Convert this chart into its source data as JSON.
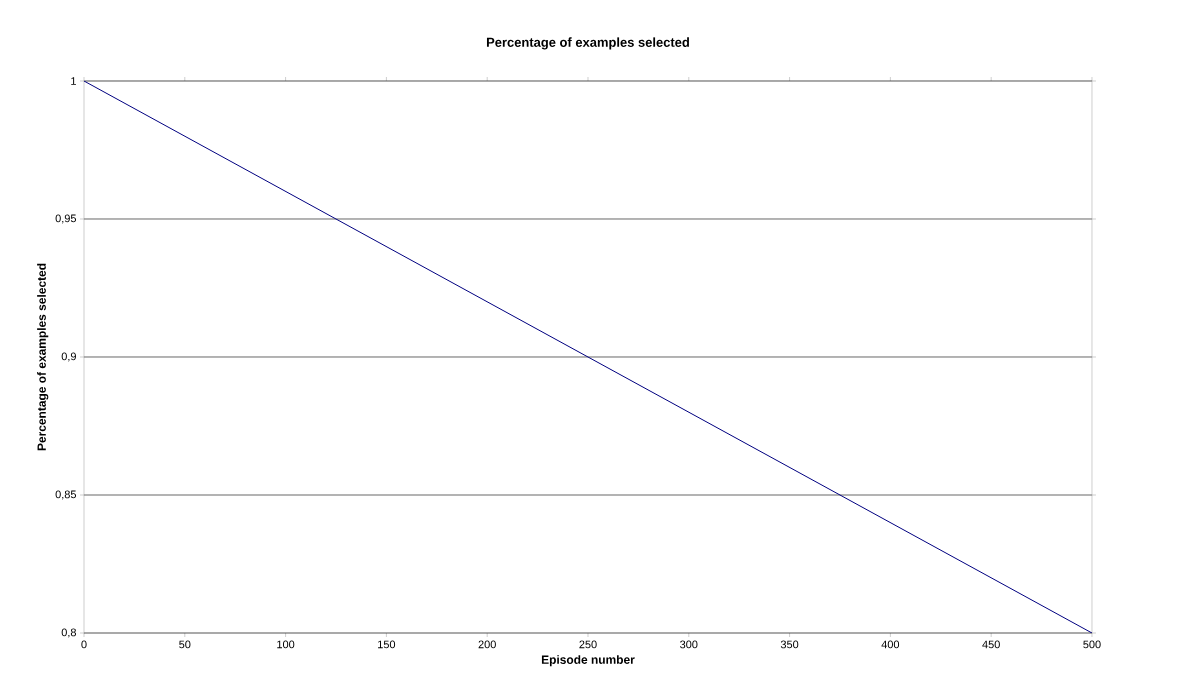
{
  "chart_data": {
    "type": "line",
    "title": "Percentage of examples selected",
    "xlabel": "Episode number",
    "ylabel": "Percentage of examples selected",
    "x": [
      0,
      500
    ],
    "color": "#000080",
    "values": [
      1,
      0.8
    ],
    "xlim": [
      0,
      500
    ],
    "xticks": [
      0,
      50,
      100,
      150,
      200,
      250,
      300,
      350,
      400,
      450,
      500
    ],
    "ylim": [
      0.8,
      1
    ],
    "yticks": [
      {
        "value": 0.8,
        "label": "0,8"
      },
      {
        "value": 0.85,
        "label": "0,85"
      },
      {
        "value": 0.9,
        "label": "0,9"
      },
      {
        "value": 0.95,
        "label": "0,95"
      },
      1
    ],
    "grid": "y"
  }
}
